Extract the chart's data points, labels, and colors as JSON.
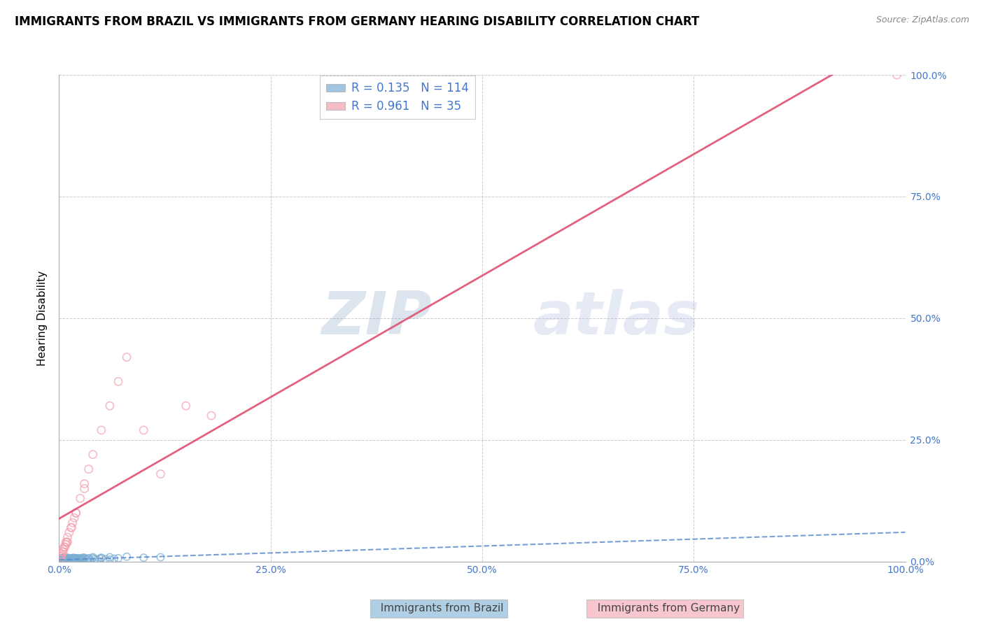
{
  "title": "IMMIGRANTS FROM BRAZIL VS IMMIGRANTS FROM GERMANY HEARING DISABILITY CORRELATION CHART",
  "source": "Source: ZipAtlas.com",
  "ylabel": "Hearing Disability",
  "legend_brazil": "Immigrants from Brazil",
  "legend_germany": "Immigrants from Germany",
  "R_brazil": 0.135,
  "N_brazil": 114,
  "R_germany": 0.961,
  "N_germany": 35,
  "brazil_color": "#7BAFD4",
  "germany_color": "#F4A0B0",
  "brazil_edge_color": "#5588BB",
  "germany_edge_color": "#E06080",
  "brazil_line_color": "#5588CC",
  "germany_line_color": "#E05070",
  "background_color": "#FFFFFF",
  "grid_color": "#CCCCCC",
  "watermark_zip": "ZIP",
  "watermark_atlas": "atlas",
  "watermark_color": "#C8D8EE",
  "title_fontsize": 12,
  "axis_label_fontsize": 11,
  "tick_fontsize": 10,
  "seed": 42,
  "brazil_scatter_x": [
    0.001,
    0.002,
    0.002,
    0.003,
    0.003,
    0.003,
    0.004,
    0.004,
    0.005,
    0.005,
    0.005,
    0.006,
    0.006,
    0.007,
    0.007,
    0.008,
    0.008,
    0.009,
    0.009,
    0.01,
    0.01,
    0.01,
    0.011,
    0.011,
    0.012,
    0.012,
    0.013,
    0.013,
    0.014,
    0.015,
    0.015,
    0.016,
    0.016,
    0.017,
    0.018,
    0.018,
    0.019,
    0.02,
    0.021,
    0.022,
    0.023,
    0.024,
    0.025,
    0.026,
    0.027,
    0.028,
    0.03,
    0.031,
    0.033,
    0.035,
    0.037,
    0.04,
    0.042,
    0.045,
    0.048,
    0.05,
    0.055,
    0.06,
    0.065,
    0.07,
    0.001,
    0.002,
    0.003,
    0.004,
    0.005,
    0.006,
    0.007,
    0.008,
    0.009,
    0.01,
    0.011,
    0.012,
    0.013,
    0.014,
    0.016,
    0.018,
    0.02,
    0.022,
    0.025,
    0.028,
    0.001,
    0.002,
    0.003,
    0.005,
    0.006,
    0.008,
    0.01,
    0.012,
    0.015,
    0.018,
    0.02,
    0.025,
    0.03,
    0.035,
    0.04,
    0.05,
    0.06,
    0.08,
    0.1,
    0.12,
    0.001,
    0.002,
    0.003,
    0.004,
    0.005,
    0.007,
    0.008,
    0.01,
    0.012,
    0.015,
    0.017,
    0.02,
    0.023,
    0.028
  ],
  "brazil_scatter_y": [
    0.003,
    0.005,
    0.002,
    0.007,
    0.004,
    0.001,
    0.006,
    0.003,
    0.008,
    0.002,
    0.005,
    0.004,
    0.007,
    0.003,
    0.006,
    0.005,
    0.002,
    0.007,
    0.004,
    0.006,
    0.003,
    0.008,
    0.005,
    0.002,
    0.007,
    0.004,
    0.006,
    0.003,
    0.005,
    0.007,
    0.002,
    0.006,
    0.004,
    0.008,
    0.003,
    0.006,
    0.005,
    0.007,
    0.004,
    0.006,
    0.003,
    0.007,
    0.005,
    0.004,
    0.006,
    0.003,
    0.007,
    0.005,
    0.004,
    0.006,
    0.003,
    0.007,
    0.005,
    0.004,
    0.006,
    0.007,
    0.005,
    0.004,
    0.006,
    0.007,
    0.001,
    0.003,
    0.002,
    0.004,
    0.003,
    0.005,
    0.002,
    0.004,
    0.003,
    0.005,
    0.002,
    0.004,
    0.003,
    0.005,
    0.004,
    0.003,
    0.005,
    0.004,
    0.006,
    0.005,
    0.002,
    0.001,
    0.003,
    0.002,
    0.004,
    0.003,
    0.005,
    0.004,
    0.006,
    0.005,
    0.007,
    0.006,
    0.008,
    0.007,
    0.009,
    0.008,
    0.009,
    0.01,
    0.008,
    0.009,
    0.001,
    0.002,
    0.001,
    0.003,
    0.002,
    0.004,
    0.003,
    0.005,
    0.004,
    0.006,
    0.005,
    0.007,
    0.006,
    0.008
  ],
  "germany_scatter_x": [
    0.002,
    0.003,
    0.004,
    0.005,
    0.006,
    0.007,
    0.008,
    0.009,
    0.01,
    0.012,
    0.014,
    0.016,
    0.018,
    0.02,
    0.025,
    0.03,
    0.035,
    0.04,
    0.05,
    0.06,
    0.07,
    0.08,
    0.1,
    0.12,
    0.15,
    0.18,
    0.001,
    0.003,
    0.005,
    0.008,
    0.01,
    0.015,
    0.02,
    0.03,
    0.99
  ],
  "germany_scatter_y": [
    0.01,
    0.015,
    0.02,
    0.025,
    0.03,
    0.03,
    0.04,
    0.04,
    0.05,
    0.06,
    0.07,
    0.08,
    0.09,
    0.1,
    0.13,
    0.16,
    0.19,
    0.22,
    0.27,
    0.32,
    0.37,
    0.42,
    0.27,
    0.18,
    0.32,
    0.3,
    0.005,
    0.012,
    0.02,
    0.035,
    0.04,
    0.07,
    0.1,
    0.15,
    1.0
  ]
}
